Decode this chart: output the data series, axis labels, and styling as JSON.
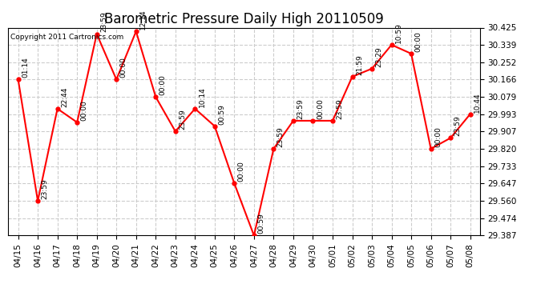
{
  "title": "Barometric Pressure Daily High 20110509",
  "copyright": "Copyright 2011 Cartronics.com",
  "x_labels": [
    "04/15",
    "04/16",
    "04/17",
    "04/18",
    "04/19",
    "04/20",
    "04/21",
    "04/22",
    "04/23",
    "04/24",
    "04/25",
    "04/26",
    "04/27",
    "04/28",
    "04/29",
    "04/30",
    "05/01",
    "05/02",
    "05/03",
    "05/04",
    "05/05",
    "05/06",
    "05/07",
    "05/08"
  ],
  "y_values": [
    30.166,
    29.56,
    30.02,
    29.952,
    30.393,
    30.166,
    30.406,
    30.079,
    29.907,
    30.02,
    29.933,
    29.647,
    29.387,
    29.82,
    29.96,
    29.96,
    29.96,
    30.18,
    30.22,
    30.339,
    30.295,
    29.82,
    29.874,
    29.993
  ],
  "time_labels": [
    "01:14",
    "23:59",
    "22:44",
    "00:00",
    "23:59",
    "00:00",
    "12:14",
    "00:00",
    "23:59",
    "10:14",
    "00:59",
    "00:00",
    "00:59",
    "23:59",
    "23:59",
    "00:00",
    "23:59",
    "21:59",
    "23:29",
    "10:59",
    "00:00",
    "00:00",
    "23:59",
    "10:44"
  ],
  "y_min": 29.387,
  "y_max": 30.425,
  "y_ticks": [
    29.387,
    29.474,
    29.56,
    29.647,
    29.733,
    29.82,
    29.907,
    29.993,
    30.079,
    30.166,
    30.252,
    30.339,
    30.425
  ],
  "line_color": "#ff0000",
  "marker_color": "#ff0000",
  "bg_color": "#ffffff",
  "grid_color": "#cccccc",
  "title_fontsize": 12,
  "tick_fontsize": 7.5,
  "label_fontsize": 6.5
}
